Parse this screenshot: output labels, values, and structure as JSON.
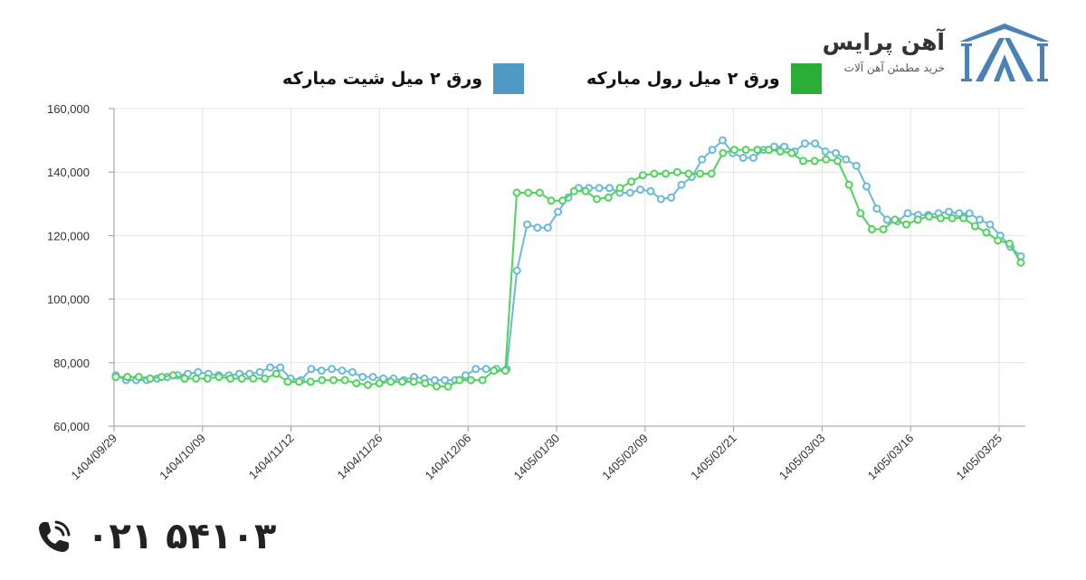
{
  "brand": {
    "name": "آهن پرایس",
    "tagline": "خرید مطمئن آهن آلات"
  },
  "contact": {
    "phone": "۰۲۱ ۵۴۱۰۳"
  },
  "colors": {
    "sheet": "#6ab8dc",
    "sheet_swatch": "#4e9ac4",
    "coil": "#4fd35a",
    "coil_swatch": "#2aae38",
    "brand_blue": "#4a82b8",
    "grid": "#e4e4e4"
  },
  "chart_data": {
    "type": "line",
    "ylim": [
      60000,
      160000
    ],
    "yticks": [
      60000,
      80000,
      100000,
      120000,
      140000,
      160000
    ],
    "ytick_labels": [
      "60,000",
      "80,000",
      "100,000",
      "120,000",
      "140,000",
      "160,000"
    ],
    "xtick_labels": [
      "1404/09/29",
      "1404/10/09",
      "1404/11/12",
      "1404/11/26",
      "1404/12/06",
      "1405/01/30",
      "1405/02/09",
      "1405/02/21",
      "1405/03/03",
      "1405/03/16",
      "1405/03/25"
    ],
    "xtick_positions": [
      0,
      11,
      22,
      33,
      44,
      55,
      66,
      77,
      88,
      99,
      110
    ],
    "legend_position": "top",
    "grid": true,
    "series": [
      {
        "name": "ورق ۲ میل شیت مبارکه",
        "color": "#6ab8dc",
        "values": [
          76000,
          74500,
          74500,
          74500,
          75000,
          75500,
          76000,
          76500,
          77000,
          76500,
          76000,
          76000,
          76500,
          76500,
          77000,
          78500,
          78500,
          75000,
          74500,
          78000,
          77500,
          78000,
          77500,
          77000,
          75500,
          75500,
          75000,
          75000,
          74500,
          75500,
          75000,
          74500,
          74500,
          74500,
          76000,
          78000,
          78000,
          78000,
          78000,
          109000,
          123500,
          122500,
          122500,
          127500,
          132000,
          135000,
          135000,
          135000,
          135000,
          133500,
          133500,
          134500,
          134000,
          131500,
          132000,
          136000,
          138500,
          144000,
          147000,
          150000,
          146000,
          144500,
          144500,
          147000,
          148000,
          148000,
          146500,
          149000,
          149000,
          146500,
          146000,
          144000,
          142000,
          135500,
          128500,
          125000,
          124500,
          127000,
          126500,
          126500,
          127000,
          127500,
          127000,
          127000,
          125000,
          123500,
          120000,
          116500,
          113500
        ]
      },
      {
        "name": "ورق ۲ میل رول مبارکه",
        "color": "#4fd35a",
        "values": [
          75500,
          75500,
          75500,
          75000,
          75500,
          76000,
          75000,
          75000,
          75000,
          75500,
          75000,
          75000,
          75000,
          75000,
          76500,
          74000,
          74000,
          74000,
          74500,
          74500,
          74500,
          73500,
          73000,
          73500,
          74000,
          74000,
          74000,
          73500,
          72500,
          72500,
          74500,
          74500,
          74500,
          77500,
          77500,
          133500,
          133500,
          133500,
          131000,
          131000,
          134000,
          134000,
          131500,
          132000,
          135000,
          137000,
          139000,
          139500,
          139500,
          140000,
          139500,
          139500,
          139500,
          146000,
          147000,
          147000,
          147000,
          147000,
          146500,
          146000,
          143500,
          143500,
          144000,
          143500,
          136000,
          127000,
          122000,
          122000,
          125000,
          123500,
          125000,
          126000,
          125500,
          125500,
          125500,
          123000,
          121000,
          118500,
          117500,
          111500
        ]
      }
    ]
  }
}
